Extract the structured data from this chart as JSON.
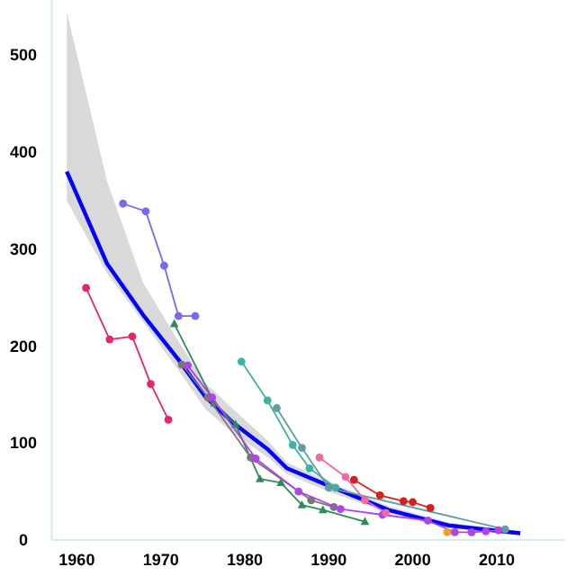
{
  "chart_data": {
    "type": "line",
    "xlim": [
      1957,
      2018
    ],
    "ylim": [
      0,
      560
    ],
    "xticks": [
      1960,
      1970,
      1980,
      1990,
      2000,
      2010
    ],
    "yticks": [
      0,
      100,
      200,
      300,
      400,
      500
    ],
    "grid": false,
    "series": [
      {
        "color": "#0000ff",
        "marker": "none",
        "x": [
          1958.8,
          1963.6,
          1967.9,
          1972.1,
          1975.3,
          1978.6,
          1982.8,
          1985,
          1990,
          1997.1,
          2004.3,
          2012.8
        ],
        "values": [
          380,
          285,
          232,
          186,
          148,
          121,
          93,
          74,
          56,
          31,
          15,
          7
        ],
        "lower": [
          350,
          275,
          225,
          175,
          135,
          110,
          85,
          68,
          50,
          28,
          12,
          5
        ],
        "upper": [
          545,
          370,
          265,
          205,
          162,
          135,
          102,
          80,
          60,
          35,
          18,
          9
        ]
      },
      {
        "color": "#e0286e",
        "marker": "circle",
        "x": [
          1961.1,
          1963.9,
          1966.6,
          1968.8,
          1970.9
        ],
        "values": [
          260,
          207,
          210,
          161,
          124
        ]
      },
      {
        "color": "#7b68ee",
        "marker": "circle",
        "x": [
          1965.5,
          1968.2,
          1970.4,
          1972.1,
          1974.1
        ],
        "values": [
          347,
          339,
          283,
          231,
          231
        ]
      },
      {
        "color": "#2e8b57",
        "marker": "triangle",
        "x": [
          1971.6,
          1976.4,
          1978.9,
          1981.8,
          1984.3,
          1986.8,
          1989.3,
          1994.3
        ],
        "values": [
          223,
          141,
          119,
          63,
          59,
          36,
          31,
          19
        ]
      },
      {
        "color": "#3cb4a0",
        "marker": "circle",
        "x": [
          1979.6,
          1982.7,
          1985.7,
          1987.7,
          1990.8
        ],
        "values": [
          184,
          144,
          98,
          74,
          54
        ]
      },
      {
        "color": "#777777",
        "marker": "circle",
        "x": [
          1972.5,
          1975.6,
          1980.7,
          1987.9,
          1990.6
        ],
        "values": [
          181,
          147,
          85,
          41,
          34
        ]
      },
      {
        "color": "#5f9ea0",
        "marker": "circle",
        "x": [
          1983.8,
          1986.8,
          1990,
          2011
        ],
        "values": [
          136,
          95,
          54,
          11
        ]
      },
      {
        "color": "#b044e6",
        "marker": "circle",
        "x": [
          1973.2,
          1976.1,
          1981.3,
          1986.4,
          1991.4,
          1996.4,
          2001.8,
          2005,
          2007,
          2008.7,
          2010.2
        ],
        "values": [
          180,
          147,
          84,
          50,
          32,
          26,
          20,
          8,
          8,
          9,
          10
        ]
      },
      {
        "color": "#f06ba0",
        "marker": "circle",
        "x": [
          1988.9,
          1992,
          1994.3,
          1996.8
        ],
        "values": [
          85,
          65,
          41,
          28
        ]
      },
      {
        "color": "#d62020",
        "marker": "circle",
        "x": [
          1993,
          1996.1,
          1998.9,
          2000,
          2002.1
        ],
        "values": [
          62,
          46,
          40,
          39,
          33
        ]
      },
      {
        "color": "#f0a020",
        "marker": "circle",
        "x": [
          2004.1
        ],
        "values": [
          8
        ]
      }
    ]
  }
}
